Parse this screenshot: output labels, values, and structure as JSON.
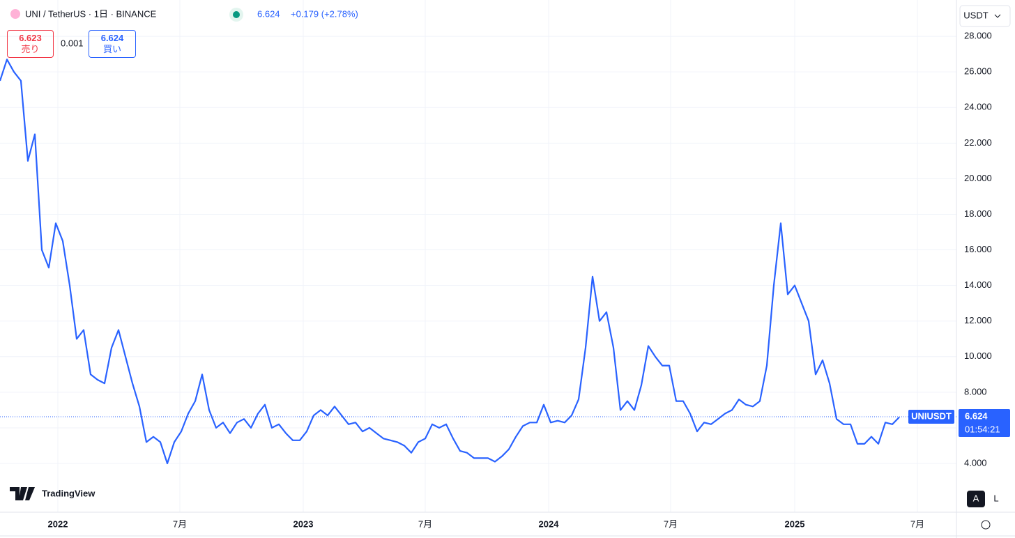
{
  "header": {
    "symbol": "UNI / TetherUS · 1日 · BINANCE",
    "price": "6.624",
    "change": "+0.179 (+2.78%)",
    "sell_price": "6.623",
    "sell_label": "売り",
    "spread": "0.001",
    "buy_price": "6.624",
    "buy_label": "買い",
    "currency": "USDT",
    "logo": "TradingView",
    "auto_button": "A",
    "log_button": "L"
  },
  "chart_data": {
    "type": "line",
    "series": [
      {
        "name": "UNIUSDT",
        "color": "#2962ff",
        "values": [
          25.5,
          26.7,
          26.0,
          25.5,
          21.0,
          22.5,
          16.0,
          15.0,
          17.5,
          16.5,
          14.0,
          11.0,
          11.5,
          9.0,
          8.7,
          8.5,
          10.5,
          11.5,
          10.0,
          8.5,
          7.2,
          5.2,
          5.5,
          5.2,
          4.0,
          5.2,
          5.8,
          6.8,
          7.5,
          9.0,
          7.0,
          6.0,
          6.3,
          5.7,
          6.3,
          6.5,
          6.0,
          6.8,
          7.3,
          6.0,
          6.2,
          5.7,
          5.3,
          5.3,
          5.8,
          6.7,
          7.0,
          6.7,
          7.2,
          6.7,
          6.2,
          6.3,
          5.8,
          6.0,
          5.7,
          5.4,
          5.3,
          5.2,
          5.0,
          4.6,
          5.2,
          5.4,
          6.2,
          6.0,
          6.2,
          5.4,
          4.7,
          4.6,
          4.3,
          4.3,
          4.3,
          4.1,
          4.4,
          4.8,
          5.5,
          6.1,
          6.3,
          6.3,
          7.3,
          6.3,
          6.4,
          6.3,
          6.7,
          7.6,
          10.5,
          14.5,
          12.0,
          12.5,
          10.5,
          7.0,
          7.5,
          7.0,
          8.4,
          10.6,
          10.0,
          9.5,
          9.5,
          7.5,
          7.5,
          6.8,
          5.8,
          6.3,
          6.2,
          6.5,
          6.8,
          7.0,
          7.6,
          7.3,
          7.2,
          7.5,
          9.5,
          14.0,
          17.5,
          13.5,
          14.0,
          13.0,
          12.0,
          9.0,
          9.8,
          8.5,
          6.5,
          6.2,
          6.2,
          5.1,
          5.1,
          5.5,
          5.1,
          6.3,
          6.2,
          6.6
        ]
      }
    ],
    "xlim": [
      0,
      137.2
    ],
    "xticks": [
      {
        "value": 8.3,
        "label": "2022"
      },
      {
        "value": 25.8,
        "label": "7月"
      },
      {
        "value": 43.5,
        "label": "2023"
      },
      {
        "value": 61.0,
        "label": "7月"
      },
      {
        "value": 78.7,
        "label": "2024"
      },
      {
        "value": 96.2,
        "label": "7月"
      },
      {
        "value": 114.0,
        "label": "2025"
      },
      {
        "value": 131.6,
        "label": "7月"
      }
    ],
    "ylim": [
      1.26,
      30.04
    ],
    "yticks": [
      {
        "value": 4,
        "label": "4.000"
      },
      {
        "value": 6,
        "label": "6.000"
      },
      {
        "value": 8,
        "label": "8.000"
      },
      {
        "value": 10,
        "label": "10.000"
      },
      {
        "value": 12,
        "label": "12.000"
      },
      {
        "value": 14,
        "label": "14.000"
      },
      {
        "value": 16,
        "label": "16.000"
      },
      {
        "value": 18,
        "label": "18.000"
      },
      {
        "value": 20,
        "label": "20.000"
      },
      {
        "value": 22,
        "label": "22.000"
      },
      {
        "value": 24,
        "label": "24.000"
      },
      {
        "value": 26,
        "label": "26.000"
      },
      {
        "value": 28,
        "label": "28.000"
      }
    ],
    "grid": true,
    "price_line": 6.624,
    "countdown": "01:54:21"
  }
}
